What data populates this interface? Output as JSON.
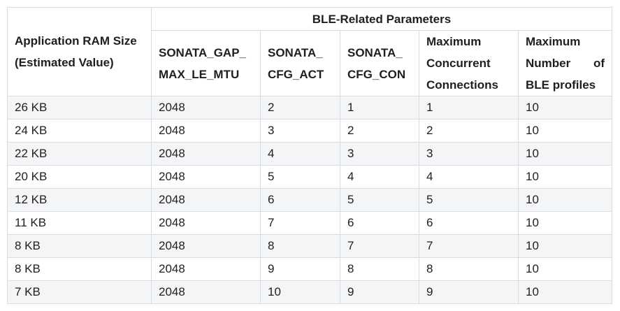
{
  "table": {
    "row_header": [
      "Application RAM Size",
      "(Estimated Value)"
    ],
    "group_header": "BLE-Related Parameters",
    "columns": [
      {
        "lines": [
          "SONATA_GAP_",
          "MAX_LE_MTU"
        ]
      },
      {
        "lines": [
          "SONATA_",
          "CFG_ACT"
        ]
      },
      {
        "lines": [
          "SONATA_",
          "CFG_CON"
        ]
      },
      {
        "lines": [
          "Maximum",
          "Concurrent",
          "Connections"
        ]
      },
      {
        "lines": [
          "Maximum",
          "Number of",
          "BLE profiles"
        ]
      }
    ],
    "rows": [
      [
        "26 KB",
        "2048",
        "2",
        "1",
        "1",
        "10"
      ],
      [
        "24 KB",
        "2048",
        "3",
        "2",
        "2",
        "10"
      ],
      [
        "22 KB",
        "2048",
        "4",
        "3",
        "3",
        "10"
      ],
      [
        "20 KB",
        "2048",
        "5",
        "4",
        "4",
        "10"
      ],
      [
        "12 KB",
        "2048",
        "6",
        "5",
        "5",
        "10"
      ],
      [
        "11 KB",
        "2048",
        "7",
        "6",
        "6",
        "10"
      ],
      [
        "8 KB",
        "2048",
        "8",
        "7",
        "7",
        "10"
      ],
      [
        "8 KB",
        "2048",
        "9",
        "8",
        "8",
        "10"
      ],
      [
        "7 KB",
        "2048",
        "10",
        "9",
        "9",
        "10"
      ]
    ]
  }
}
